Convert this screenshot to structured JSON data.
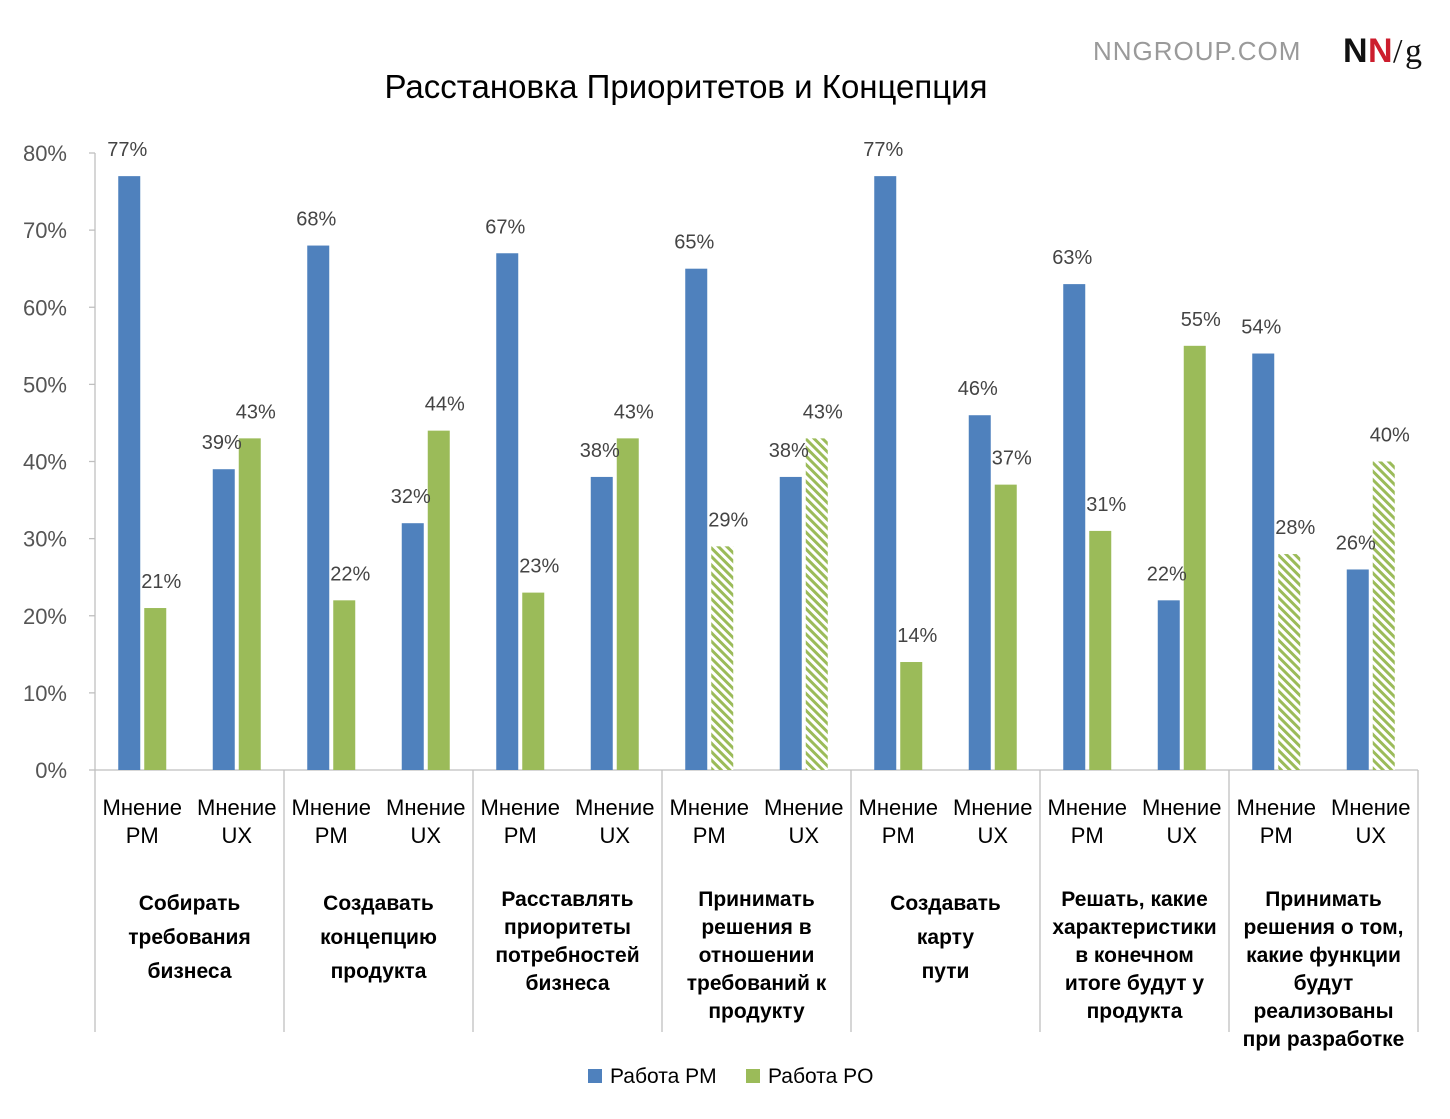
{
  "brand": {
    "url": "NNGROUP.COM",
    "logo_n1": "N",
    "logo_n2": "N",
    "logo_slash": "/",
    "logo_g": "g"
  },
  "chart_data": {
    "type": "bar",
    "title": "Расстановка Приоритетов и Концепция",
    "ylim": [
      0,
      80
    ],
    "yticks": [
      "0%",
      "10%",
      "20%",
      "30%",
      "40%",
      "50%",
      "60%",
      "70%",
      "80%"
    ],
    "grid": false,
    "legend_position": "bottom",
    "colors": {
      "pm": "#4f81bd",
      "po": "#9bbb59"
    },
    "legend": [
      "Работа PM",
      "Работа PO"
    ],
    "groups": [
      {
        "label": [
          "Собирать",
          "требования",
          "бизнеса"
        ],
        "subgroups": [
          {
            "label": [
              "Мнение",
              "PM"
            ],
            "pm": 77,
            "po": 21,
            "po_hatched": false,
            "pm_label": "77%",
            "po_label": "21%"
          },
          {
            "label": [
              "Мнение",
              "UX"
            ],
            "pm": 39,
            "po": 43,
            "po_hatched": false,
            "pm_label": "39%",
            "po_label": "43%"
          }
        ]
      },
      {
        "label": [
          "Создавать",
          "концепцию",
          "продукта"
        ],
        "subgroups": [
          {
            "label": [
              "Мнение",
              "PM"
            ],
            "pm": 68,
            "po": 22,
            "po_hatched": false,
            "pm_label": "68%",
            "po_label": "22%"
          },
          {
            "label": [
              "Мнение",
              "UX"
            ],
            "pm": 32,
            "po": 44,
            "po_hatched": false,
            "pm_label": "32%",
            "po_label": "44%"
          }
        ]
      },
      {
        "label": [
          "Расставлять",
          "приоритеты",
          "потребностей",
          "бизнеса"
        ],
        "subgroups": [
          {
            "label": [
              "Мнение",
              "PM"
            ],
            "pm": 67,
            "po": 23,
            "po_hatched": false,
            "pm_label": "67%",
            "po_label": "23%"
          },
          {
            "label": [
              "Мнение",
              "UX"
            ],
            "pm": 38,
            "po": 43,
            "po_hatched": false,
            "pm_label": "38%",
            "po_label": "43%"
          }
        ]
      },
      {
        "label": [
          "Принимать",
          "решения в",
          "отношении",
          "требований к",
          "продукту"
        ],
        "subgroups": [
          {
            "label": [
              "Мнение",
              "PM"
            ],
            "pm": 65,
            "po": 29,
            "po_hatched": true,
            "pm_label": "65%",
            "po_label": "29%"
          },
          {
            "label": [
              "Мнение",
              "UX"
            ],
            "pm": 38,
            "po": 43,
            "po_hatched": true,
            "pm_label": "38%",
            "po_label": "43%"
          }
        ]
      },
      {
        "label": [
          "Создавать",
          "карту",
          "пути"
        ],
        "subgroups": [
          {
            "label": [
              "Мнение",
              "PM"
            ],
            "pm": 77,
            "po": 14,
            "po_hatched": false,
            "pm_label": "77%",
            "po_label": "14%"
          },
          {
            "label": [
              "Мнение",
              "UX"
            ],
            "pm": 46,
            "po": 37,
            "po_hatched": false,
            "pm_label": "46%",
            "po_label": "37%"
          }
        ]
      },
      {
        "label": [
          "Решать, какие",
          "характеристики",
          "в конечном",
          "итоге будут у",
          "продукта"
        ],
        "subgroups": [
          {
            "label": [
              "Мнение",
              "PM"
            ],
            "pm": 63,
            "po": 31,
            "po_hatched": false,
            "pm_label": "63%",
            "po_label": "31%"
          },
          {
            "label": [
              "Мнение",
              "UX"
            ],
            "pm": 22,
            "po": 55,
            "po_hatched": false,
            "pm_label": "22%",
            "po_label": "55%"
          }
        ]
      },
      {
        "label": [
          "Принимать",
          "решения о том,",
          "какие функции",
          "будут",
          "реализованы",
          "при разработке"
        ],
        "subgroups": [
          {
            "label": [
              "Мнение",
              "PM"
            ],
            "pm": 54,
            "po": 28,
            "po_hatched": true,
            "pm_label": "54%",
            "po_label": "28%"
          },
          {
            "label": [
              "Мнение",
              "UX"
            ],
            "pm": 26,
            "po": 40,
            "po_hatched": true,
            "pm_label": "26%",
            "po_label": "40%"
          }
        ]
      }
    ]
  }
}
